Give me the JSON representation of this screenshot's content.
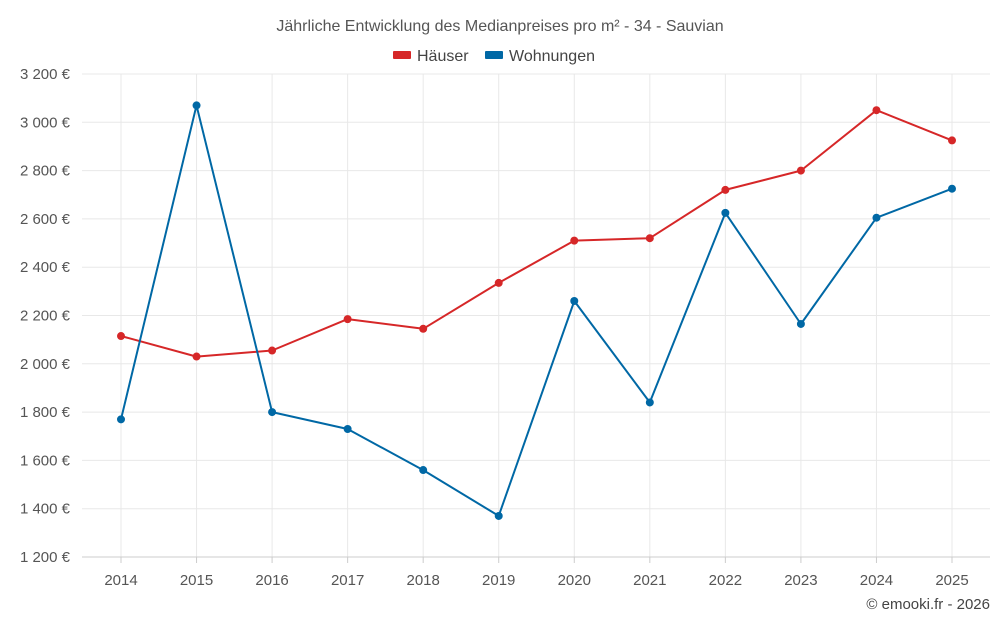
{
  "chart_data": {
    "type": "line",
    "title": "Jährliche Entwicklung des Medianpreises pro m² - 34 - Sauvian",
    "xlabel": "",
    "ylabel": "",
    "categories": [
      "2014",
      "2015",
      "2016",
      "2017",
      "2018",
      "2019",
      "2020",
      "2021",
      "2022",
      "2023",
      "2024",
      "2025"
    ],
    "ylim": [
      1200,
      3200
    ],
    "yticks": [
      1200,
      1400,
      1600,
      1800,
      2000,
      2200,
      2400,
      2600,
      2800,
      3000,
      3200
    ],
    "ytick_labels": [
      "1 200 €",
      "1 400 €",
      "1 600 €",
      "1 800 €",
      "2 000 €",
      "2 200 €",
      "2 400 €",
      "2 600 €",
      "2 800 €",
      "3 000 €",
      "3 200 €"
    ],
    "grid": true,
    "legend_position": "top-center",
    "series": [
      {
        "name": "Häuser",
        "color": "#d62728",
        "values": [
          2115,
          2030,
          2055,
          2185,
          2145,
          2335,
          2510,
          2520,
          2720,
          2800,
          3050,
          2925
        ]
      },
      {
        "name": "Wohnungen",
        "color": "#0068a5",
        "values": [
          1770,
          3070,
          1800,
          1730,
          1560,
          1370,
          2260,
          1840,
          2625,
          2165,
          2605,
          2725
        ]
      }
    ]
  },
  "credit": "© emooki.fr - 2026"
}
